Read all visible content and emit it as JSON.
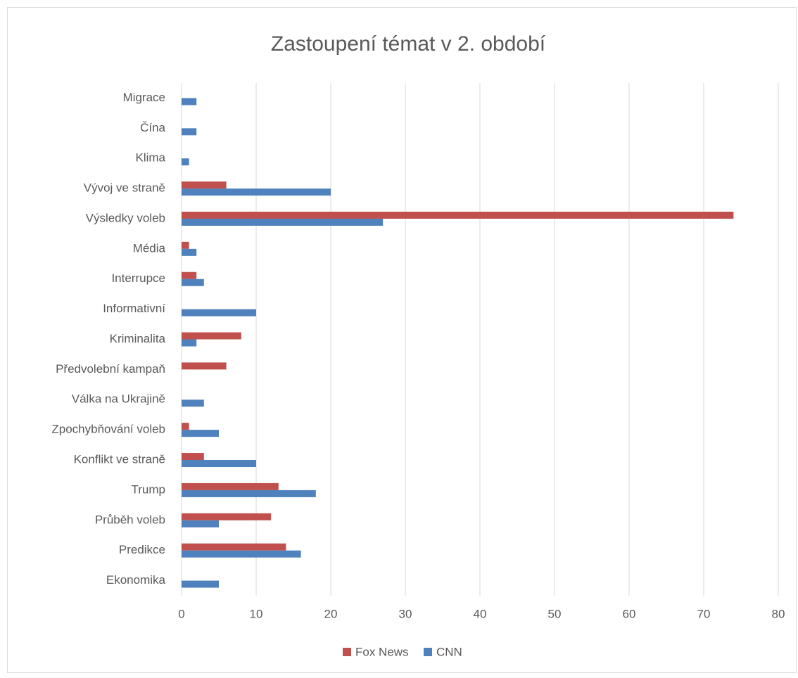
{
  "chart_data": {
    "type": "bar",
    "orientation": "horizontal",
    "title": "Zastoupení témat v 2. období",
    "categories": [
      "Migrace",
      "Čína ",
      "Klima",
      "Vývoj ve straně",
      "Výsledky voleb",
      "Média",
      "Interrupce",
      "Informativní ",
      "Kriminalita",
      "Předvolební kampaň",
      "Válka na Ukrajině",
      "Zpochybňování voleb",
      "Konflikt ve straně",
      "Trump",
      "Průběh voleb",
      "Predikce",
      "Ekonomika"
    ],
    "series": [
      {
        "name": "Fox News",
        "color": "#c0504d",
        "values": [
          0,
          0,
          0,
          6,
          74,
          1,
          2,
          0,
          8,
          6,
          0,
          1,
          3,
          13,
          12,
          14,
          0
        ]
      },
      {
        "name": "CNN",
        "color": "#4f81bd",
        "values": [
          2,
          2,
          1,
          20,
          27,
          2,
          3,
          10,
          2,
          0,
          3,
          5,
          10,
          18,
          5,
          16,
          5
        ]
      }
    ],
    "xlim": [
      0,
      80
    ],
    "xticks": [
      0,
      10,
      20,
      30,
      40,
      50,
      60,
      70,
      80
    ],
    "grid": true,
    "legend": "bottom"
  }
}
